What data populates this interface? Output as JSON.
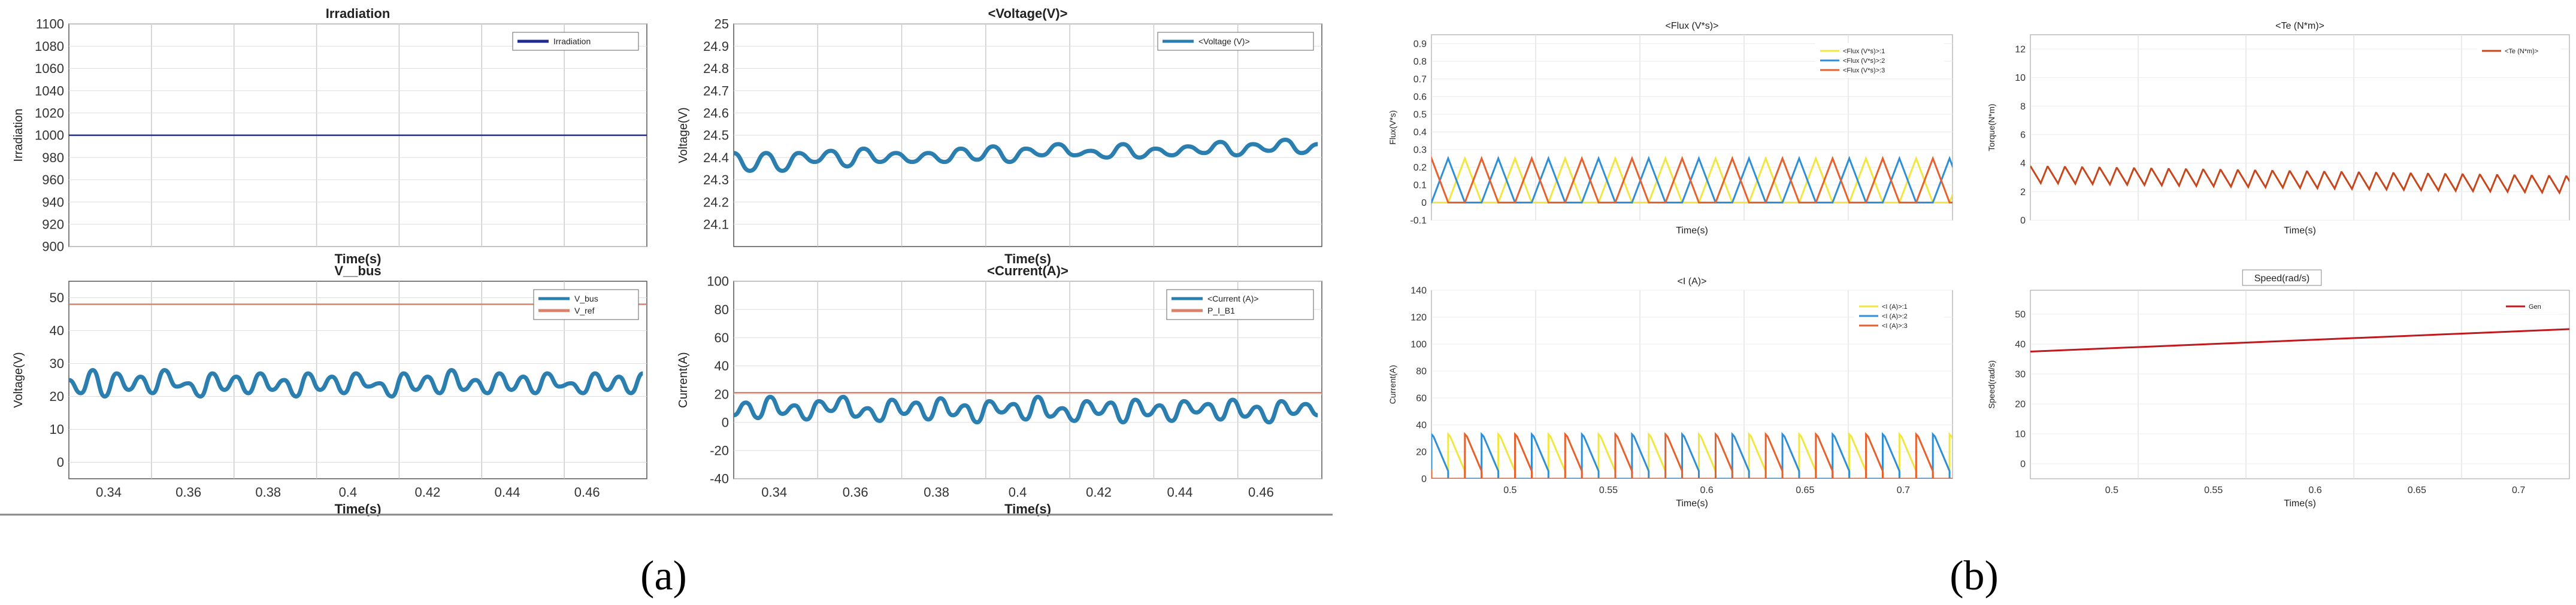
{
  "captions": {
    "a": "(a)",
    "b": "(b)"
  },
  "chart_data": [
    {
      "id": "irr",
      "type": "line",
      "title": "Irradiation",
      "xlabel": "Time(s)",
      "ylabel": "Irradiation",
      "xlim": [
        0.33,
        0.475
      ],
      "ylim": [
        900,
        1100
      ],
      "yticks": [
        "900",
        "920",
        "940",
        "960",
        "980",
        "1000",
        "1020",
        "1040",
        "1060",
        "1080",
        "1100"
      ],
      "xticks": [],
      "legend": "top-right",
      "series": [
        {
          "name": "Irradiation",
          "color": "#1f2a8c",
          "x": [
            0.33,
            0.475
          ],
          "y": [
            1000,
            1000
          ]
        }
      ]
    },
    {
      "id": "volt",
      "type": "line",
      "title": "<Voltage(V)>",
      "xlabel": "Time(s)",
      "ylabel": "Voltage(V)",
      "xlim": [
        0.33,
        0.475
      ],
      "ylim": [
        24.0,
        25.0
      ],
      "yticks": [
        "24.1",
        "24.2",
        "24.3",
        "24.4",
        "24.5",
        "24.6",
        "24.7",
        "24.8",
        "24.9",
        "25"
      ],
      "xticks": [],
      "legend": "top-right",
      "series": [
        {
          "name": "<Voltage (V)>",
          "color": "#2a7fb0",
          "x": [
            0.33,
            0.334,
            0.338,
            0.342,
            0.346,
            0.35,
            0.354,
            0.358,
            0.362,
            0.366,
            0.37,
            0.374,
            0.378,
            0.382,
            0.386,
            0.39,
            0.394,
            0.398,
            0.402,
            0.406,
            0.41,
            0.414,
            0.418,
            0.422,
            0.426,
            0.43,
            0.434,
            0.438,
            0.442,
            0.446,
            0.45,
            0.454,
            0.458,
            0.462,
            0.466,
            0.47,
            0.474
          ],
          "y": [
            24.42,
            24.34,
            24.42,
            24.34,
            24.42,
            24.38,
            24.43,
            24.36,
            24.44,
            24.38,
            24.42,
            24.38,
            24.42,
            24.38,
            24.44,
            24.39,
            24.45,
            24.38,
            24.44,
            24.41,
            24.46,
            24.41,
            24.43,
            24.4,
            24.46,
            24.4,
            24.44,
            24.41,
            24.45,
            24.42,
            24.47,
            24.41,
            24.46,
            24.43,
            24.48,
            24.42,
            24.46
          ]
        }
      ]
    },
    {
      "id": "vbus",
      "type": "line",
      "title": "V__bus",
      "xlabel": "Time(s)",
      "ylabel": "Voltage(V)",
      "xlim": [
        0.33,
        0.475
      ],
      "ylim": [
        -5,
        55
      ],
      "yticks": [
        "0",
        "10",
        "20",
        "30",
        "40",
        "50"
      ],
      "xticks": [
        "0.34",
        "0.36",
        "0.38",
        "0.4",
        "0.42",
        "0.44",
        "0.46"
      ],
      "legend": "top-right",
      "series": [
        {
          "name": "V_bus",
          "color": "#2a7fb0",
          "x": [
            0.33,
            0.333,
            0.336,
            0.339,
            0.342,
            0.345,
            0.348,
            0.351,
            0.354,
            0.357,
            0.36,
            0.363,
            0.366,
            0.369,
            0.372,
            0.375,
            0.378,
            0.381,
            0.384,
            0.387,
            0.39,
            0.393,
            0.396,
            0.399,
            0.402,
            0.405,
            0.408,
            0.411,
            0.414,
            0.417,
            0.42,
            0.423,
            0.426,
            0.429,
            0.432,
            0.435,
            0.438,
            0.441,
            0.444,
            0.447,
            0.45,
            0.453,
            0.456,
            0.459,
            0.462,
            0.465,
            0.468,
            0.471,
            0.474
          ],
          "y": [
            25,
            21,
            28,
            20,
            27,
            22,
            26,
            21,
            28,
            23,
            24,
            20,
            27,
            22,
            26,
            21,
            27,
            22,
            25,
            20,
            27,
            22,
            26,
            21,
            27,
            23,
            24,
            20,
            27,
            22,
            26,
            21,
            28,
            22,
            25,
            21,
            27,
            22,
            26,
            21,
            27,
            23,
            24,
            21,
            27,
            22,
            26,
            21,
            27
          ]
        },
        {
          "name": "V_ref",
          "color": "#d9826b",
          "x": [
            0.33,
            0.475
          ],
          "y": [
            48,
            48
          ]
        }
      ]
    },
    {
      "id": "curr",
      "type": "line",
      "title": "<Current(A)>",
      "xlabel": "Time(s)",
      "ylabel": "Current(A)",
      "xlim": [
        0.33,
        0.475
      ],
      "ylim": [
        -40,
        100
      ],
      "yticks": [
        "-40",
        "-20",
        "0",
        "20",
        "40",
        "60",
        "80",
        "100"
      ],
      "xticks": [
        "0.34",
        "0.36",
        "0.38",
        "0.4",
        "0.42",
        "0.44",
        "0.46"
      ],
      "legend": "top-right",
      "series": [
        {
          "name": "<Current (A)>",
          "color": "#2a7fb0",
          "x": [
            0.33,
            0.333,
            0.336,
            0.339,
            0.342,
            0.345,
            0.348,
            0.351,
            0.354,
            0.357,
            0.36,
            0.363,
            0.366,
            0.369,
            0.372,
            0.375,
            0.378,
            0.381,
            0.384,
            0.387,
            0.39,
            0.393,
            0.396,
            0.399,
            0.402,
            0.405,
            0.408,
            0.411,
            0.414,
            0.417,
            0.42,
            0.423,
            0.426,
            0.429,
            0.432,
            0.435,
            0.438,
            0.441,
            0.444,
            0.447,
            0.45,
            0.453,
            0.456,
            0.459,
            0.462,
            0.465,
            0.468,
            0.471,
            0.474
          ],
          "y": [
            5,
            14,
            3,
            18,
            6,
            12,
            2,
            15,
            8,
            18,
            4,
            10,
            1,
            16,
            6,
            14,
            2,
            17,
            5,
            12,
            0,
            15,
            7,
            13,
            2,
            18,
            4,
            10,
            1,
            15,
            6,
            14,
            0,
            16,
            5,
            12,
            1,
            15,
            7,
            13,
            2,
            16,
            4,
            11,
            0,
            15,
            6,
            13,
            5
          ]
        },
        {
          "name": "P_I_B1",
          "color": "#d9826b",
          "x": [
            0.33,
            0.475
          ],
          "y": [
            21,
            21
          ]
        }
      ]
    },
    {
      "id": "flux",
      "type": "line",
      "title": "<Flux (V*s)>",
      "xlabel": "Time(s)",
      "ylabel": "Flux(V*s)",
      "xlim": [
        0.46,
        0.725
      ],
      "ylim": [
        -0.1,
        0.95
      ],
      "yticks": [
        "-0.1",
        "0",
        "0.1",
        "0.2",
        "0.3",
        "0.4",
        "0.5",
        "0.6",
        "0.7",
        "0.8",
        "0.9"
      ],
      "xticks": [],
      "legend": "top-right",
      "series": [
        {
          "name": "<Flux (V*s)>:1",
          "color": "#f2e640",
          "phase": 0.333,
          "period": 0.0255,
          "amp": 0.25
        },
        {
          "name": "<Flux (V*s)>:2",
          "color": "#2e8fd8",
          "phase": 0.0,
          "period": 0.0255,
          "amp": 0.25
        },
        {
          "name": "<Flux (V*s)>:3",
          "color": "#e8602c",
          "phase": 0.667,
          "period": 0.0255,
          "amp": 0.25
        }
      ]
    },
    {
      "id": "te",
      "type": "line",
      "title": "<Te (N*m)>",
      "xlabel": "Time(s)",
      "ylabel": "Torque(N*m)",
      "xlim": [
        0.46,
        0.725
      ],
      "ylim": [
        0,
        13
      ],
      "yticks": [
        "0",
        "2",
        "4",
        "6",
        "8",
        "10",
        "12"
      ],
      "xticks": [],
      "legend": "top-right",
      "series": [
        {
          "name": "<Te (N*m)>",
          "color": "#c8461c",
          "start": 3.3,
          "end": 2.6,
          "period": 0.0085
        }
      ]
    },
    {
      "id": "iab",
      "type": "line",
      "title": "<I (A)>",
      "xlabel": "Time(s)",
      "ylabel": "Current(A)",
      "xlim": [
        0.46,
        0.725
      ],
      "ylim": [
        0,
        140
      ],
      "yticks": [
        "0",
        "20",
        "40",
        "60",
        "80",
        "100",
        "120",
        "140"
      ],
      "xticks": [
        "0.5",
        "0.55",
        "0.6",
        "0.65",
        "0.7"
      ],
      "legend": "top-right",
      "series": [
        {
          "name": "<I (A)>:1",
          "color": "#f2e640",
          "phase": 0.333,
          "period": 0.0255,
          "peak": 33
        },
        {
          "name": "<I (A)>:2",
          "color": "#2e8fd8",
          "phase": 0.0,
          "period": 0.0255,
          "peak": 33
        },
        {
          "name": "<I (A)>:3",
          "color": "#e8602c",
          "phase": 0.667,
          "period": 0.0255,
          "peak": 33
        }
      ]
    },
    {
      "id": "spd",
      "type": "line",
      "title": "Speed(rad/s)",
      "xlabel": "Time(s)",
      "ylabel": "Speed(rad/s)",
      "xlim": [
        0.46,
        0.725
      ],
      "ylim": [
        -5,
        58
      ],
      "yticks": [
        "0",
        "10",
        "20",
        "30",
        "40",
        "50"
      ],
      "xticks": [
        "0.5",
        "0.55",
        "0.6",
        "0.65",
        "0.7"
      ],
      "legend": "top-right",
      "series": [
        {
          "name": "Gen",
          "color": "#c0181c",
          "x": [
            0.46,
            0.725
          ],
          "y": [
            37.5,
            45
          ]
        }
      ]
    }
  ]
}
